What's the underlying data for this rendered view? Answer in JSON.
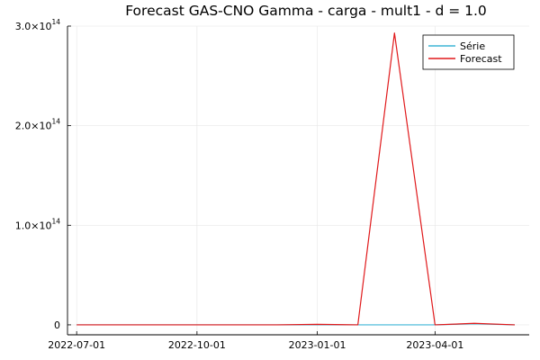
{
  "chart_data": {
    "type": "line",
    "title": "Forecast GAS-CNO Gamma - carga - mult1 - d = 1.0",
    "xlabel": "",
    "ylabel": "",
    "x_ticks": [
      "2022-07-01",
      "2022-10-01",
      "2023-01-01",
      "2023-04-01"
    ],
    "y_ticks": [
      {
        "value": 0,
        "mantissa": "0",
        "exp": ""
      },
      {
        "value": 100000000000000.0,
        "mantissa": "1.0×10",
        "exp": "14"
      },
      {
        "value": 200000000000000.0,
        "mantissa": "2.0×10",
        "exp": "14"
      },
      {
        "value": 300000000000000.0,
        "mantissa": "3.0×10",
        "exp": "14"
      }
    ],
    "xlim": [
      "2022-06-24",
      "2023-06-12"
    ],
    "ylim": [
      -10000000000000.0,
      300000000000000.0
    ],
    "grid": true,
    "legend_position": "top-right",
    "x": [
      "2022-07-01",
      "2022-08-01",
      "2022-09-01",
      "2022-10-01",
      "2022-11-01",
      "2022-12-01",
      "2023-01-01",
      "2023-02-01",
      "2023-03-01",
      "2023-04-01",
      "2023-05-01",
      "2023-06-01"
    ],
    "series": [
      {
        "name": "Série",
        "color": "#3fb6d6",
        "values": [
          0,
          0,
          0,
          0,
          0,
          0,
          0,
          0,
          0,
          0,
          1000000000000.0,
          0
        ]
      },
      {
        "name": "Forecast",
        "color": "#e0191b",
        "values": [
          0,
          0,
          0,
          0,
          0,
          0,
          500000000000.0,
          0,
          293000000000000.0,
          0,
          1500000000000.0,
          0
        ]
      }
    ]
  }
}
